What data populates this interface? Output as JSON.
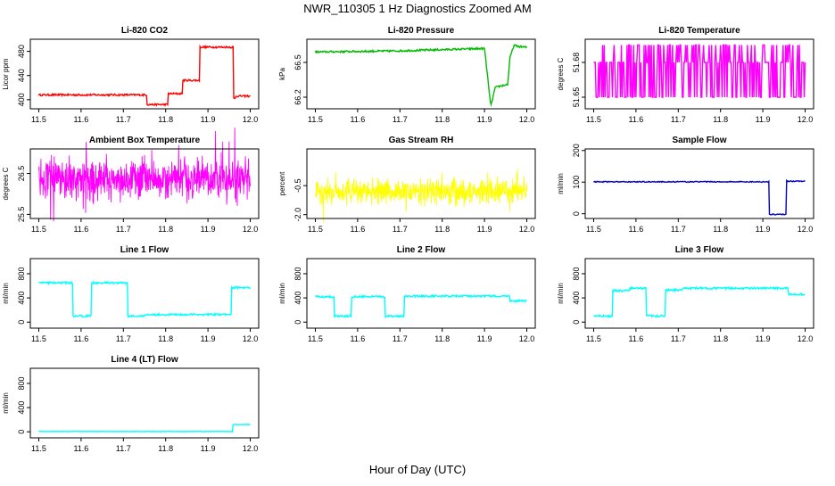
{
  "page_title": "NWR_110305  1 Hz Diagnostics Zoomed AM",
  "x_axis_label": "Hour of Day (UTC)",
  "colors": {
    "red": "#ff0000",
    "green": "#00bb00",
    "magenta": "#ff00ff",
    "yellow": "#ffff00",
    "blue": "#0000cc",
    "cyan": "#00ffff",
    "axis": "#000000"
  },
  "chart_data": [
    {
      "id": "co2",
      "type": "line",
      "title": "Li-820 CO2",
      "ylabel": "Licor ppm",
      "color": "red",
      "xlim": [
        11.48,
        12.02
      ],
      "ylim": [
        385,
        500
      ],
      "xticks": [
        "11.5",
        "11.6",
        "11.7",
        "11.8",
        "11.9",
        "12.0"
      ],
      "yticks": [
        400,
        440,
        480
      ],
      "ytick_labels": [
        "400",
        "440",
        "480"
      ],
      "signal": {
        "kind": "steps",
        "x": [
          11.5,
          11.755,
          11.805,
          11.84,
          11.88,
          11.96,
          11.965,
          12.0
        ],
        "y": [
          408,
          392,
          410,
          432,
          487,
          402,
          406,
          406
        ],
        "noise": 1.5
      }
    },
    {
      "id": "pressure",
      "type": "line",
      "title": "Li-820 Pressure",
      "ylabel": "kPa",
      "color": "green",
      "xlim": [
        11.48,
        12.02
      ],
      "ylim": [
        66.1,
        66.7
      ],
      "xticks": [
        "11.5",
        "11.6",
        "11.7",
        "11.8",
        "11.9",
        "12.0"
      ],
      "yticks": [
        66.2,
        66.5
      ],
      "ytick_labels": [
        "66.2",
        "66.5"
      ],
      "signal": {
        "kind": "points",
        "x": [
          11.5,
          11.6,
          11.7,
          11.8,
          11.9,
          11.915,
          11.925,
          11.93,
          11.955,
          11.96,
          11.97,
          11.975,
          12.0
        ],
        "y": [
          66.59,
          66.595,
          66.6,
          66.61,
          66.62,
          66.12,
          66.28,
          66.29,
          66.31,
          66.54,
          66.65,
          66.64,
          66.63
        ],
        "noise": 0.008
      }
    },
    {
      "id": "licor-temp",
      "type": "line",
      "title": "Li-820 Temperature",
      "ylabel": "degrees C",
      "color": "magenta",
      "xlim": [
        11.48,
        12.02
      ],
      "ylim": [
        51.64,
        51.7
      ],
      "xticks": [
        "11.5",
        "11.6",
        "11.7",
        "11.8",
        "11.9",
        "12.0"
      ],
      "yticks": [
        51.65,
        51.68
      ],
      "ytick_labels": [
        "51.65",
        "51.68"
      ],
      "signal": {
        "kind": "levels",
        "levels": [
          51.65,
          51.68,
          51.695
        ],
        "base": 51.68
      }
    },
    {
      "id": "box-temp",
      "type": "line",
      "title": "Ambient Box Temperature",
      "ylabel": "degrees C",
      "color": "magenta",
      "xlim": [
        11.48,
        12.02
      ],
      "ylim": [
        25.4,
        27.1
      ],
      "xticks": [
        "11.5",
        "11.6",
        "11.7",
        "11.8",
        "11.9",
        "12.0"
      ],
      "yticks": [
        25.5,
        26.5
      ],
      "ytick_labels": [
        "25.5",
        "26.5"
      ],
      "signal": {
        "kind": "noise",
        "center": 26.35,
        "amp": 0.35
      }
    },
    {
      "id": "gas-rh",
      "type": "line",
      "title": "Gas Stream RH",
      "ylabel": "percent",
      "color": "yellow",
      "xlim": [
        11.48,
        12.02
      ],
      "ylim": [
        -2.2,
        1.4
      ],
      "xticks": [
        "11.5",
        "11.6",
        "11.7",
        "11.8",
        "11.9",
        "12.0"
      ],
      "yticks": [
        -2.0,
        -0.5
      ],
      "ytick_labels": [
        "-2.0",
        "-0.5"
      ],
      "signal": {
        "kind": "noise",
        "center": -0.8,
        "amp": 0.45
      }
    },
    {
      "id": "sample-flow",
      "type": "line",
      "title": "Sample Flow",
      "ylabel": "ml/min",
      "color": "blue",
      "xlim": [
        11.48,
        12.02
      ],
      "ylim": [
        -15,
        205
      ],
      "xticks": [
        "11.5",
        "11.6",
        "11.7",
        "11.8",
        "11.9",
        "12.0"
      ],
      "yticks": [
        0,
        100,
        200
      ],
      "ytick_labels": [
        "0",
        "100",
        "200"
      ],
      "signal": {
        "kind": "steps",
        "x": [
          11.5,
          11.915,
          11.955,
          12.0
        ],
        "y": [
          101,
          -2,
          103,
          103
        ],
        "noise": 1.5
      }
    },
    {
      "id": "line1-flow",
      "type": "line",
      "title": "Line 1 Flow",
      "ylabel": "ml/min",
      "color": "cyan",
      "xlim": [
        11.48,
        12.02
      ],
      "ylim": [
        -100,
        1050
      ],
      "xticks": [
        "11.5",
        "11.6",
        "11.7",
        "11.8",
        "11.9",
        "12.0"
      ],
      "yticks": [
        0,
        400,
        800
      ],
      "ytick_labels": [
        "0",
        "400",
        "800"
      ],
      "signal": {
        "kind": "steps",
        "x": [
          11.5,
          11.58,
          11.625,
          11.71,
          11.75,
          11.955,
          12.0
        ],
        "y": [
          650,
          100,
          650,
          100,
          125,
          570,
          570
        ],
        "noise": 15
      }
    },
    {
      "id": "line2-flow",
      "type": "line",
      "title": "Line 2 Flow",
      "ylabel": "ml/min",
      "color": "cyan",
      "xlim": [
        11.48,
        12.02
      ],
      "ylim": [
        -100,
        1050
      ],
      "xticks": [
        "11.5",
        "11.6",
        "11.7",
        "11.8",
        "11.9",
        "12.0"
      ],
      "yticks": [
        0,
        400,
        800
      ],
      "ytick_labels": [
        "0",
        "400",
        "800"
      ],
      "signal": {
        "kind": "steps",
        "x": [
          11.5,
          11.545,
          11.585,
          11.665,
          11.71,
          11.96,
          12.0
        ],
        "y": [
          420,
          100,
          420,
          100,
          430,
          350,
          350
        ],
        "noise": 15
      }
    },
    {
      "id": "line3-flow",
      "type": "line",
      "title": "Line 3 Flow",
      "ylabel": "ml/min",
      "color": "cyan",
      "xlim": [
        11.48,
        12.02
      ],
      "ylim": [
        -100,
        1050
      ],
      "xticks": [
        "11.5",
        "11.6",
        "11.7",
        "11.8",
        "11.9",
        "12.0"
      ],
      "yticks": [
        0,
        400,
        800
      ],
      "ytick_labels": [
        "0",
        "400",
        "800"
      ],
      "signal": {
        "kind": "steps",
        "x": [
          11.5,
          11.545,
          11.585,
          11.625,
          11.67,
          11.71,
          11.96,
          12.0
        ],
        "y": [
          100,
          520,
          560,
          100,
          530,
          560,
          460,
          460
        ],
        "noise": 15
      }
    },
    {
      "id": "line4-flow",
      "type": "line",
      "title": "Line 4 (LT) Flow",
      "ylabel": "ml/min",
      "color": "cyan",
      "xlim": [
        11.48,
        12.02
      ],
      "ylim": [
        -100,
        1050
      ],
      "xticks": [
        "11.5",
        "11.6",
        "11.7",
        "11.8",
        "11.9",
        "12.0"
      ],
      "yticks": [
        0,
        400,
        800
      ],
      "ytick_labels": [
        "0",
        "400",
        "800"
      ],
      "signal": {
        "kind": "steps",
        "x": [
          11.5,
          11.958,
          12.0
        ],
        "y": [
          5,
          120,
          120
        ],
        "noise": 4
      }
    }
  ]
}
